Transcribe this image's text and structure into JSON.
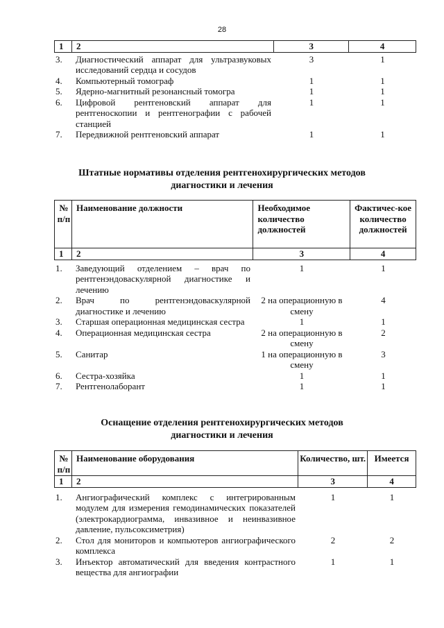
{
  "page_number": "28",
  "table1": {
    "number_row": [
      "1",
      "2",
      "3",
      "4"
    ],
    "rows": [
      {
        "n": "3.",
        "name": "Диагностический аппарат для ультразвуковых исследований сердца и сосудов",
        "c3": "3",
        "c4": "1"
      },
      {
        "n": "4.",
        "name": "Компьютерный томограф",
        "c3": "1",
        "c4": "1"
      },
      {
        "n": "5.",
        "name": "Ядерно-магнитный резонансный томогра",
        "c3": "1",
        "c4": "1"
      },
      {
        "n": "6.",
        "name": "Цифровой рентгеновский аппарат для рентгеноскопии и рентгенографии с рабочей станцией",
        "c3": "1",
        "c4": "1"
      },
      {
        "n": "7.",
        "name": "Передвижной рентгеновский аппарат",
        "c3": "1",
        "c4": "1"
      }
    ]
  },
  "section2": {
    "title_line1": "Штатные нормативы отделения рентгенохирургических методов",
    "title_line2": "диагностики и лечения",
    "headers": [
      "№ п/п",
      "Наименование должности",
      "Необходимое количество должностей",
      "Фактичес-кое количество должностей"
    ],
    "number_row": [
      "1",
      "2",
      "3",
      "4"
    ],
    "rows": [
      {
        "n": "1.",
        "name": "Заведующий отделением – врач по рентгенэндоваскулярной диагностике и лечению",
        "c3": "1",
        "c4": "1"
      },
      {
        "n": "2.",
        "name": "Врач по рентгенэндоваскулярной диагностике и лечению",
        "c3": "2 на операционную в смену",
        "c4": "4"
      },
      {
        "n": "3.",
        "name": "Старшая операционная медицинская сестра",
        "c3": "1",
        "c4": "1"
      },
      {
        "n": "4.",
        "name": "Операционная медицинская сестра",
        "c3": "2 на операционную в смену",
        "c4": "2"
      },
      {
        "n": "5.",
        "name": "Санитар",
        "c3": "1 на операционную в смену",
        "c4": "3"
      },
      {
        "n": "6.",
        "name": "Сестра-хозяйка",
        "c3": "1",
        "c4": "1"
      },
      {
        "n": "7.",
        "name": "Рентгенолаборант",
        "c3": "1",
        "c4": "1"
      }
    ]
  },
  "section3": {
    "title_line1": "Оснащение отделения рентгенохирургических методов",
    "title_line2": "диагностики и лечения",
    "headers": [
      "№ п/п",
      "Наименование оборудования",
      "Количество, шт.",
      "Имеется"
    ],
    "number_row": [
      "1",
      "2",
      "3",
      "4"
    ],
    "rows": [
      {
        "n": "1.",
        "name": "Ангиографический комплекс с интегрированным модулем для измерения гемодинамических показателей (электрокардиограмма, инвазивное и неинвазивное давление, пульсоксиметрия)",
        "c3": "1",
        "c4": "1"
      },
      {
        "n": "2.",
        "name": "Стол для мониторов и компьютеров ангиографического комплекса",
        "c3": "2",
        "c4": "2"
      },
      {
        "n": "3.",
        "name": "Инъектор автоматический для введения контрастного вещества для ангиографии",
        "c3": "1",
        "c4": "1"
      }
    ]
  }
}
